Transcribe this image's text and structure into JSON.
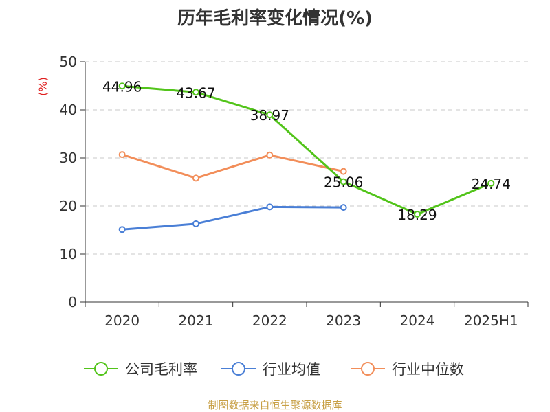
{
  "chart_data": {
    "type": "line",
    "title": "历年毛利率变化情况(%)",
    "ylabel": "(%)",
    "ylim": [
      0,
      50
    ],
    "yticks": [
      0,
      10,
      20,
      30,
      40,
      50
    ],
    "categories": [
      "2020",
      "2021",
      "2022",
      "2023",
      "2024",
      "2025H1"
    ],
    "series": [
      {
        "name": "公司毛利率",
        "color": "#52c41a",
        "values": [
          44.96,
          43.67,
          38.97,
          25.06,
          18.29,
          24.74
        ],
        "labels": [
          "44.96",
          "43.67",
          "38.97",
          "25.06",
          "18.29",
          "24.74"
        ]
      },
      {
        "name": "行业均值",
        "color": "#4a7fd6",
        "values": [
          15.1,
          16.3,
          19.8,
          19.7,
          null,
          null
        ]
      },
      {
        "name": "行业中位数",
        "color": "#f28e5a",
        "values": [
          30.7,
          25.8,
          30.6,
          27.2,
          null,
          null
        ]
      }
    ],
    "grid": true,
    "legend_position": "bottom"
  },
  "footer": "制图数据来自恒生聚源数据库"
}
